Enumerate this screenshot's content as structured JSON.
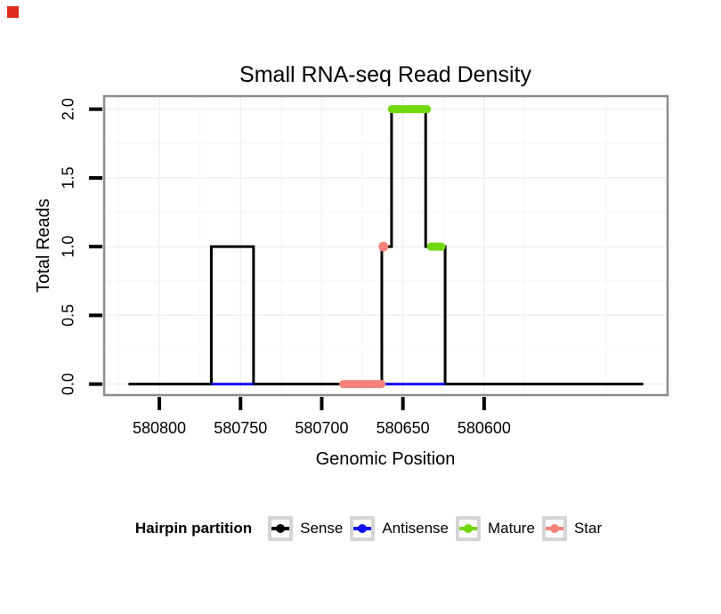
{
  "figure": {
    "marker_color": "#de2b1b"
  },
  "chart_data": {
    "type": "step-line",
    "title": "Small RNA-seq Read Density",
    "xlabel": "Genomic Position",
    "ylabel": "Total Reads",
    "x_axis_reversed": true,
    "x_domain": [
      580834,
      580487
    ],
    "y_domain": [
      -0.08,
      2.095
    ],
    "x_ticks": [
      580800,
      580750,
      580700,
      580650,
      580600
    ],
    "y_ticks": [
      {
        "v": 0.0,
        "label": "0.0"
      },
      {
        "v": 0.5,
        "label": "0.5"
      },
      {
        "v": 1.0,
        "label": "1.0"
      },
      {
        "v": 1.5,
        "label": "1.5"
      },
      {
        "v": 2.0,
        "label": "2.0"
      }
    ],
    "grid": {
      "major_y": [
        0,
        0.5,
        1,
        1.5,
        2
      ],
      "minor_y": [
        0.25,
        0.75,
        1.25,
        1.75
      ],
      "minor_x": [
        580825,
        580775,
        580725,
        580675,
        580625,
        580575,
        580525
      ]
    },
    "series": [
      {
        "name": "Sense",
        "color": "#000000",
        "kind": "step",
        "width": 3,
        "points": [
          [
            580819,
            0
          ],
          [
            580768,
            0
          ],
          [
            580768,
            1
          ],
          [
            580742,
            1
          ],
          [
            580742,
            0
          ],
          [
            580663,
            0
          ],
          [
            580663,
            1
          ],
          [
            580657,
            1
          ],
          [
            580657,
            2
          ],
          [
            580636,
            2
          ],
          [
            580636,
            1
          ],
          [
            580624,
            1
          ],
          [
            580624,
            0
          ],
          [
            580502,
            0
          ]
        ]
      },
      {
        "name": "Antisense",
        "color": "#1010ee",
        "kind": "segments",
        "width": 3,
        "segments": [
          {
            "x1": 580768,
            "x2": 580742,
            "y": 0
          },
          {
            "x1": 580661,
            "x2": 580624,
            "y": 0
          }
        ]
      },
      {
        "name": "Mature",
        "color": "#72d80e",
        "kind": "segments",
        "width": 9,
        "segments": [
          {
            "x1": 580659,
            "x2": 580633,
            "y": 2
          },
          {
            "x1": 580635,
            "x2": 580624,
            "y": 1
          }
        ]
      },
      {
        "name": "Star",
        "color": "#f5827a",
        "kind": "segments",
        "width": 9,
        "segments": [
          {
            "x1": 580689,
            "x2": 580661,
            "y": 0
          }
        ],
        "points": [
          {
            "x": 580662,
            "y": 1
          }
        ]
      }
    ],
    "legend": {
      "title": "Hairpin partition",
      "entries": [
        {
          "label": "Sense",
          "color": "#000000"
        },
        {
          "label": "Antisense",
          "color": "#1010ee"
        },
        {
          "label": "Mature",
          "color": "#72d80e"
        },
        {
          "label": "Star",
          "color": "#f5827a"
        }
      ]
    }
  }
}
